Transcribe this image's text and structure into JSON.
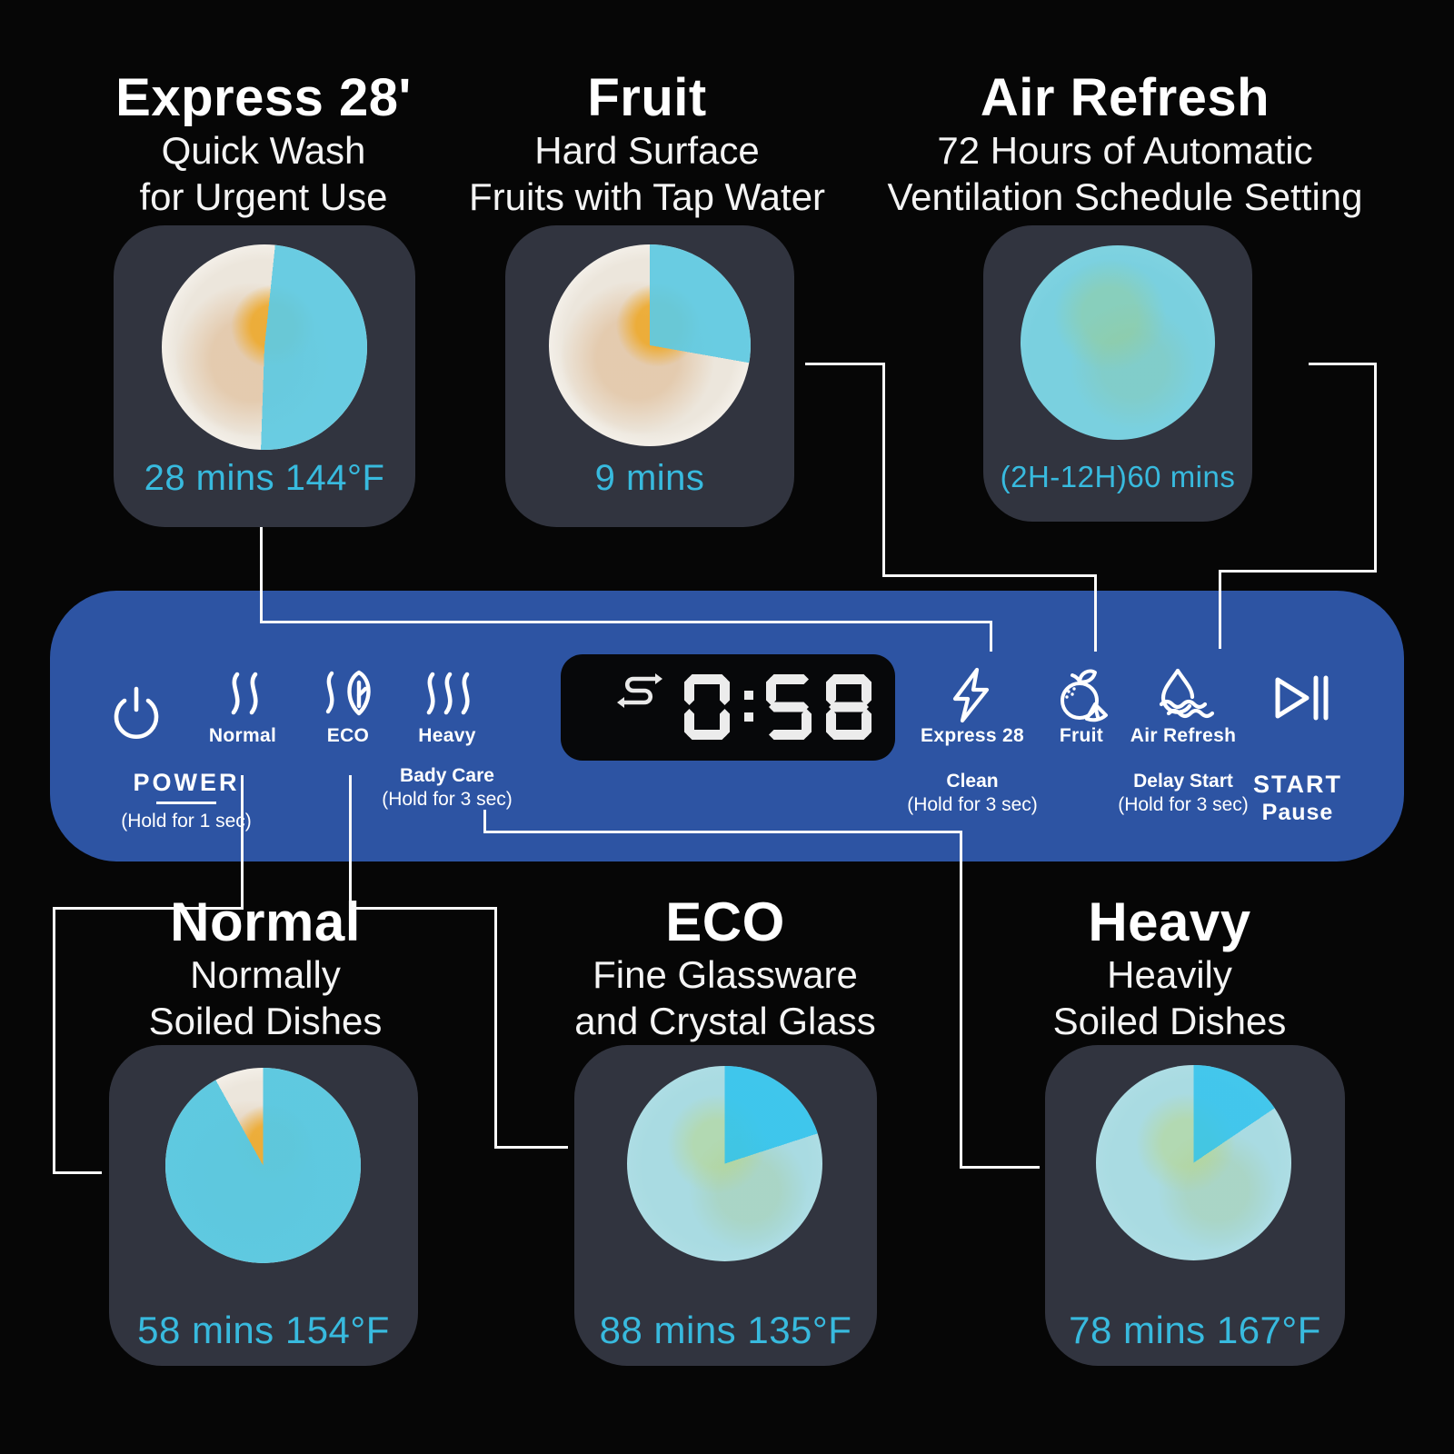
{
  "colors": {
    "background": "#060606",
    "panel_blue": "#2d54a3",
    "card_gray": "#31343f",
    "accent_cyan": "#38bade",
    "plate_clean_blue": "#61cbe2",
    "plate_bright_blue": "#2cc2ee",
    "display_background": "#07080a"
  },
  "top_programs": [
    {
      "id": "express",
      "title": "Express 28'",
      "subtitle_lines": [
        "Quick Wash",
        "for Urgent Use"
      ],
      "caption": "28 mins 144°F"
    },
    {
      "id": "fruit",
      "title": "Fruit",
      "subtitle_lines": [
        "Hard Surface",
        "Fruits with Tap Water"
      ],
      "caption": "9 mins"
    },
    {
      "id": "air-refresh",
      "title": "Air Refresh",
      "subtitle_lines": [
        "72 Hours of Automatic",
        "Ventilation Schedule Setting"
      ],
      "caption": "(2H-12H)60 mins"
    }
  ],
  "bottom_programs": [
    {
      "id": "normal",
      "title": "Normal",
      "subtitle_lines": [
        "Normally",
        "Soiled Dishes"
      ],
      "caption": "58 mins 154°F"
    },
    {
      "id": "eco",
      "title": "ECO",
      "subtitle_lines": [
        "Fine Glassware",
        "and Crystal Glass"
      ],
      "caption": "88 mins 135°F"
    },
    {
      "id": "heavy",
      "title": "Heavy",
      "subtitle_lines": [
        "Heavily",
        "Soiled Dishes"
      ],
      "caption": "78 mins 167°F"
    }
  ],
  "panel": {
    "display": {
      "value": "0:58",
      "icon": "s-shaped-arrow-icon"
    },
    "power": {
      "label": "POWER",
      "hold": "(Hold for 1 sec)",
      "icon": "power-icon"
    },
    "normal": {
      "label": "Normal",
      "icon": "steam-two-waves-icon"
    },
    "eco": {
      "label": "ECO",
      "icon": "leaf-steam-icon"
    },
    "heavy": {
      "label": "Heavy",
      "icon": "steam-three-waves-icon"
    },
    "body_care": {
      "label": "Bady Care",
      "hold": "(Hold for 3 sec)"
    },
    "express": {
      "label": "Express 28",
      "icon": "lightning-bolt-icon"
    },
    "clean": {
      "label": "Clean",
      "hold": "(Hold for 3 sec)"
    },
    "fruit": {
      "label": "Fruit",
      "icon": "orange-fruit-icon"
    },
    "air": {
      "label": "Air Refresh",
      "icon": "water-drop-waves-icon"
    },
    "delay": {
      "label": "Delay Start",
      "hold": "(Hold for 3 sec)"
    },
    "start": {
      "label": "START",
      "sublabel": "Pause",
      "icon": "play-pause-icon"
    }
  }
}
